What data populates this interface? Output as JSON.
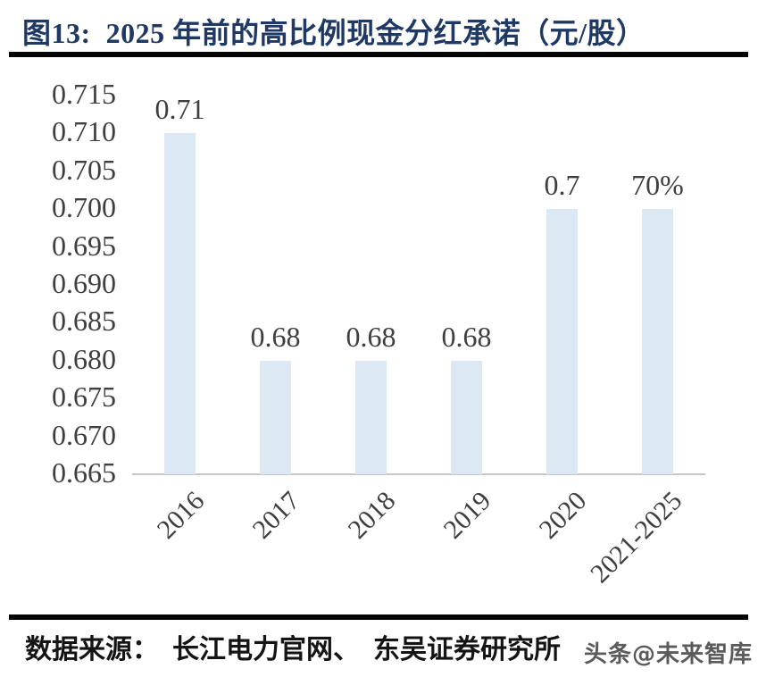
{
  "header": {
    "title": "图13:  2025 年前的高比例现金分红承诺（元/股）"
  },
  "footer": {
    "source": "数据来源：  长江电力官网、  东吴证券研究所",
    "watermark": "头条@未来智库"
  },
  "chart_data": {
    "type": "bar",
    "title": "图13: 2025 年前的高比例现金分红承诺（元/股）",
    "categories": [
      "2016",
      "2017",
      "2018",
      "2019",
      "2020",
      "2021-2025"
    ],
    "values": [
      0.71,
      0.68,
      0.68,
      0.68,
      0.7,
      0.7
    ],
    "bar_labels": [
      "0.71",
      "0.68",
      "0.68",
      "0.68",
      "0.7",
      "70%"
    ],
    "xlabel": "",
    "ylabel": "",
    "ylim": [
      0.665,
      0.715
    ],
    "ytick_step": 0.005,
    "yticks": [
      "0.715",
      "0.710",
      "0.705",
      "0.700",
      "0.695",
      "0.690",
      "0.685",
      "0.680",
      "0.675",
      "0.670",
      "0.665"
    ],
    "grid": false,
    "legend_position": "none",
    "bar_color": "#dce8f4",
    "axis_line_color": "#c6c6c6",
    "text_color": "#3f3f3f",
    "title_color": "#1f3864",
    "source_note": "数据来源：长江电力官网、东吴证券研究所"
  }
}
